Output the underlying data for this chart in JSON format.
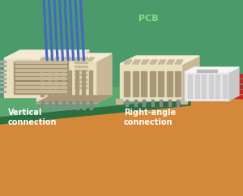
{
  "bg_green": "#4a9a6a",
  "bg_orange": "#d4883a",
  "pcb_green": "#5aaa70",
  "pcb_green_dark": "#3d8855",
  "pcb_edge": "#2d7040",
  "cream": "#e8dfc0",
  "cream_light": "#f2ead4",
  "cream_dark": "#c8b898",
  "cream_shadow": "#a89878",
  "white_conn": "#e8e8e8",
  "white_conn_light": "#f5f5f5",
  "white_conn_dark": "#c8c8c8",
  "wire_blue": "#4466cc",
  "wire_red": "#cc2222",
  "text_green_label": "#88dd88",
  "text_white": "#ffffff",
  "pin_gray": "#aaaaaa",
  "pin_gray_dark": "#888888",
  "title": "PCB",
  "label1": "Vertical\nconnection",
  "label2": "Right-angle\nconnection",
  "figsize": [
    3.0,
    2.42
  ],
  "dpi": 100
}
